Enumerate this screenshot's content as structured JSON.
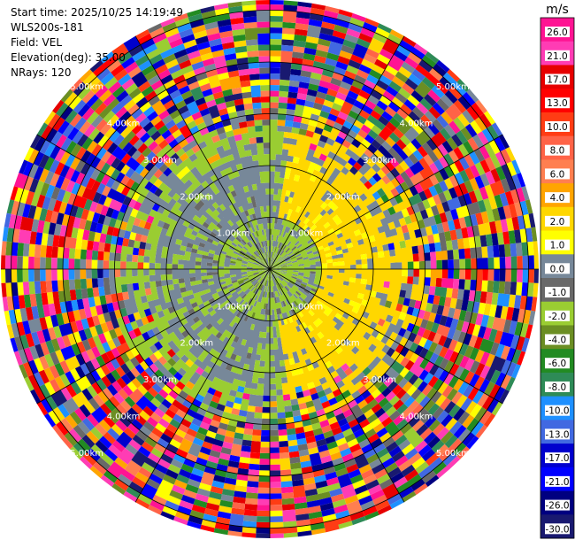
{
  "header": {
    "start_time": "Start time: 2025/10/25 14:19:49",
    "instrument": "WLS200s-181",
    "field": "Field: VEL",
    "elevation": "Elevation(deg): 35.00",
    "nrays": "NRays: 120"
  },
  "chart_data": {
    "type": "heatmap",
    "projection": "polar-ppi",
    "field": "VEL",
    "units": "m/s",
    "nrays": 120,
    "ring_labels": [
      "1.00km",
      "2.00km",
      "3.00km",
      "4.00km",
      "5.00km"
    ],
    "colorbar": {
      "unit": "m/s",
      "ticks": [
        "26.0",
        "21.0",
        "17.0",
        "13.0",
        "10.0",
        "8.0",
        "6.0",
        "4.0",
        "2.0",
        "1.0",
        "0.0",
        "-1.0",
        "-2.0",
        "-4.0",
        "-6.0",
        "-8.0",
        "-10.0",
        "-13.0",
        "-17.0",
        "-21.0",
        "-26.0",
        "-30.0"
      ],
      "colors": [
        "#ff1493",
        "#ff3cb4",
        "#e60000",
        "#ff0000",
        "#ff3c14",
        "#ff6347",
        "#ff7f50",
        "#ffa500",
        "#ffd700",
        "#ffff00",
        "#778899",
        "#696969",
        "#9acd32",
        "#6b8e23",
        "#228b22",
        "#2e8b57",
        "#1e90ff",
        "#4169e1",
        "#0000cd",
        "#0000ff",
        "#000080",
        "#191970"
      ]
    }
  }
}
